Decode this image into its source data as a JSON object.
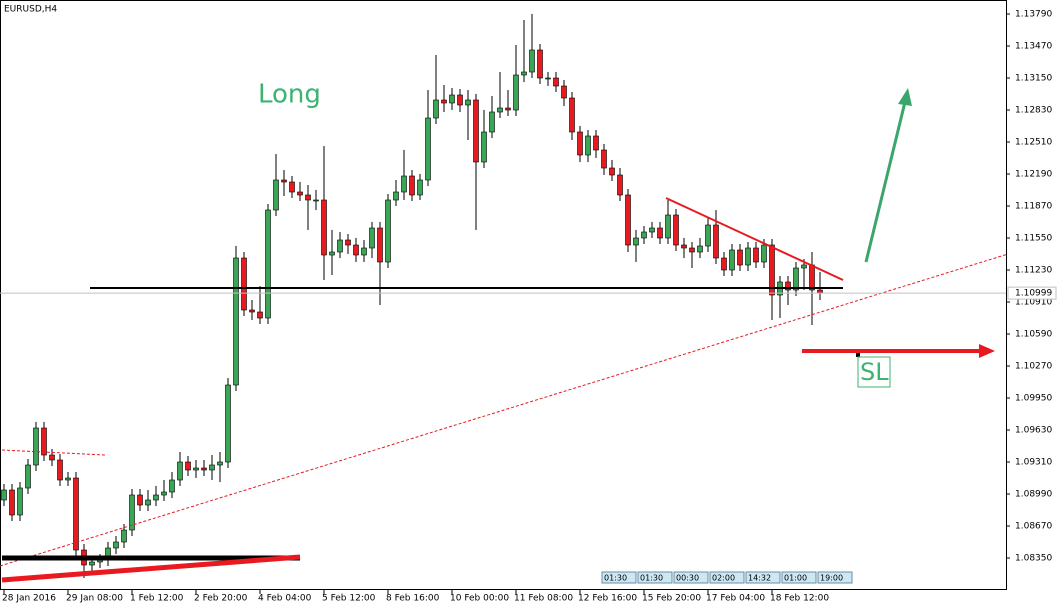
{
  "chart_data": {
    "type": "candlestick",
    "title": "EURUSD,H4",
    "categories": [
      "28 Jan 2016",
      null,
      null,
      null,
      null,
      null,
      null,
      null,
      "29 Jan 08:00",
      null,
      null,
      null,
      null,
      null,
      null,
      null,
      "1 Feb 12:00",
      null,
      null,
      null,
      null,
      null,
      null,
      null,
      "2 Feb 20:00",
      null,
      null,
      null,
      null,
      null,
      null,
      null,
      "4 Feb 04:00",
      null,
      null,
      null,
      null,
      null,
      null,
      null,
      "5 Feb 12:00",
      null,
      null,
      null,
      null,
      null,
      null,
      null,
      "8 Feb 16:00",
      null,
      null,
      null,
      null,
      null,
      null,
      null,
      "10 Feb 00:00",
      null,
      null,
      null,
      null,
      null,
      null,
      null,
      "11 Feb 08:00",
      null,
      null,
      null,
      null,
      null,
      null,
      null,
      "12 Feb 16:00",
      null,
      null,
      null,
      null,
      null,
      null,
      null,
      "15 Feb 20:00",
      null,
      null,
      null,
      null,
      null,
      null,
      null,
      "17 Feb 04:00",
      null,
      null,
      null,
      null,
      null,
      null,
      null,
      "18 Feb 12:00",
      null,
      null,
      null,
      null,
      null,
      null
    ],
    "open": [
      1.0893,
      1.0903,
      1.0878,
      1.0905,
      1.0928,
      1.0965,
      1.0938,
      1.0933,
      1.0913,
      1.0915,
      1.0843,
      1.0828,
      1.0831,
      1.0833,
      1.0845,
      1.0851,
      1.0863,
      1.0898,
      1.0888,
      1.0893,
      1.0898,
      1.0901,
      1.0913,
      1.0931,
      1.0923,
      1.0925,
      1.0923,
      1.0928,
      1.0931,
      1.1008,
      1.1135,
      1.1083,
      1.1081,
      1.1075,
      1.1183,
      1.1213,
      1.1211,
      1.1201,
      1.1198,
      1.1193,
      1.1193,
      1.1138,
      1.1141,
      1.1153,
      1.1148,
      1.1138,
      1.1145,
      1.1165,
      1.1131,
      1.1193,
      1.1201,
      1.1217,
      1.1198,
      1.1213,
      1.1275,
      1.1293,
      1.129,
      1.1298,
      1.1288,
      1.1293,
      1.1231,
      1.1261,
      1.1281,
      1.1285,
      1.1283,
      1.1318,
      1.1321,
      1.1343,
      1.1315,
      1.1315,
      1.1307,
      1.1295,
      1.1261,
      1.1238,
      1.1257,
      1.1243,
      1.1225,
      1.1218,
      1.1198,
      1.1148,
      1.1155,
      1.1161,
      1.1165,
      1.1155,
      1.1178,
      1.1148,
      1.1145,
      1.1141,
      1.1147,
      1.1168,
      1.1135,
      1.1123,
      1.1143,
      1.1128,
      1.1145,
      1.1131,
      1.1148,
      1.1098,
      1.1111,
      1.1103,
      1.1125,
      1.1128,
      1.1103
    ],
    "high": [
      1.0909,
      1.0909,
      1.0911,
      1.0934,
      1.0971,
      1.0971,
      1.0944,
      1.0939,
      1.0921,
      1.0921,
      1.0849,
      1.0837,
      1.0839,
      1.0851,
      1.0857,
      1.0869,
      1.0904,
      1.0904,
      1.0903,
      1.0907,
      1.0913,
      1.0921,
      1.0941,
      1.0937,
      1.0933,
      1.0933,
      1.0938,
      1.0941,
      1.1015,
      1.1147,
      1.1141,
      1.1093,
      1.1107,
      1.1189,
      1.1239,
      1.1223,
      1.1217,
      1.1211,
      1.1208,
      1.1203,
      1.1247,
      1.1163,
      1.1161,
      1.1159,
      1.1155,
      1.1153,
      1.1171,
      1.1171,
      1.1199,
      1.1213,
      1.1243,
      1.1223,
      1.1219,
      1.1303,
      1.1338,
      1.1308,
      1.1305,
      1.1304,
      1.1303,
      1.1299,
      1.1283,
      1.1297,
      1.1321,
      1.1303,
      1.1348,
      1.1373,
      1.1379,
      1.1349,
      1.1321,
      1.1321,
      1.1313,
      1.1301,
      1.1267,
      1.1263,
      1.1263,
      1.1249,
      1.1233,
      1.1225,
      1.1204,
      1.1163,
      1.1167,
      1.1171,
      1.1171,
      1.1193,
      1.1184,
      1.1155,
      1.1151,
      1.1155,
      1.1175,
      1.1183,
      1.1141,
      1.1149,
      1.1149,
      1.1151,
      1.1151,
      1.1154,
      1.1154,
      1.1117,
      1.1117,
      1.1131,
      1.1134,
      1.1141,
      1.1121
    ],
    "low": [
      1.0887,
      1.0872,
      1.0872,
      1.0899,
      1.0922,
      1.0932,
      1.0927,
      1.0907,
      1.0907,
      1.0837,
      1.0815,
      1.0822,
      1.0825,
      1.0827,
      1.0839,
      1.0845,
      1.0857,
      1.0882,
      1.0882,
      1.0887,
      1.0892,
      1.0895,
      1.0907,
      1.0917,
      1.0915,
      1.0917,
      1.0913,
      1.0911,
      1.0925,
      1.1002,
      1.1077,
      1.1073,
      1.1069,
      1.1069,
      1.1177,
      1.1197,
      1.1195,
      1.1192,
      1.1163,
      1.1183,
      1.1113,
      1.1118,
      1.1135,
      1.1139,
      1.1131,
      1.1131,
      1.1135,
      1.1088,
      1.1125,
      1.1187,
      1.1193,
      1.1192,
      1.1193,
      1.1207,
      1.1269,
      1.1281,
      1.1283,
      1.1281,
      1.1253,
      1.1163,
      1.1225,
      1.1255,
      1.1275,
      1.1277,
      1.1277,
      1.1311,
      1.1315,
      1.1309,
      1.1307,
      1.1301,
      1.1287,
      1.1253,
      1.1231,
      1.1231,
      1.1235,
      1.1218,
      1.1212,
      1.1192,
      1.1141,
      1.1131,
      1.1149,
      1.1155,
      1.1149,
      1.1149,
      1.1142,
      1.1135,
      1.1125,
      1.1135,
      1.1141,
      1.1129,
      1.1117,
      1.1117,
      1.1122,
      1.1122,
      1.1125,
      1.1125,
      1.1073,
      1.1075,
      1.1088,
      1.1097,
      1.1103,
      1.1068,
      1.1093
    ],
    "close": [
      1.0903,
      1.0878,
      1.0905,
      1.0928,
      1.0965,
      1.0938,
      1.0933,
      1.0913,
      1.0915,
      1.0843,
      1.0828,
      1.0831,
      1.0833,
      1.0845,
      1.0851,
      1.0863,
      1.0898,
      1.0888,
      1.0893,
      1.0898,
      1.0901,
      1.0913,
      1.0931,
      1.0923,
      1.0925,
      1.0923,
      1.0928,
      1.0931,
      1.1008,
      1.1135,
      1.1083,
      1.1081,
      1.1075,
      1.1183,
      1.1213,
      1.1211,
      1.1201,
      1.1198,
      1.1193,
      1.1193,
      1.1138,
      1.1141,
      1.1153,
      1.1148,
      1.1138,
      1.1145,
      1.1165,
      1.1131,
      1.1193,
      1.1201,
      1.1217,
      1.1198,
      1.1213,
      1.1275,
      1.1293,
      1.129,
      1.1298,
      1.1288,
      1.1293,
      1.1231,
      1.1261,
      1.1281,
      1.1285,
      1.1283,
      1.1318,
      1.1321,
      1.1343,
      1.1315,
      1.1315,
      1.1307,
      1.1295,
      1.1261,
      1.1238,
      1.1257,
      1.1243,
      1.1225,
      1.1218,
      1.1198,
      1.1148,
      1.1155,
      1.1161,
      1.1165,
      1.1155,
      1.1178,
      1.1148,
      1.1145,
      1.1141,
      1.1147,
      1.1168,
      1.1135,
      1.1123,
      1.1143,
      1.1128,
      1.1145,
      1.1131,
      1.1148,
      1.1098,
      1.1111,
      1.1103,
      1.1125,
      1.1128,
      1.1103,
      1.10999
    ],
    "up_color": "#3aa655",
    "down_color": "#e8191f",
    "ylim": [
      1.0803,
      1.1393
    ],
    "yticks": [
      {
        "value": 1.1379,
        "label": "1.13790"
      },
      {
        "value": 1.1347,
        "label": "1.13470"
      },
      {
        "value": 1.1315,
        "label": "1.13150"
      },
      {
        "value": 1.1283,
        "label": "1.12830"
      },
      {
        "value": 1.1251,
        "label": "1.12510"
      },
      {
        "value": 1.1219,
        "label": "1.12190"
      },
      {
        "value": 1.1187,
        "label": "1.11870"
      },
      {
        "value": 1.1155,
        "label": "1.11550"
      },
      {
        "value": 1.1123,
        "label": "1.11230"
      },
      {
        "value": 1.1091,
        "label": "1.10910"
      },
      {
        "value": 1.1059,
        "label": "1.10590"
      },
      {
        "value": 1.1027,
        "label": "1.10270"
      },
      {
        "value": 1.0995,
        "label": "1.09950"
      },
      {
        "value": 1.0963,
        "label": "1.09630"
      },
      {
        "value": 1.0931,
        "label": "1.09310"
      },
      {
        "value": 1.0899,
        "label": "1.08990"
      },
      {
        "value": 1.0867,
        "label": "1.08670"
      },
      {
        "value": 1.0835,
        "label": "1.08350"
      }
    ],
    "current_price": 1.10999,
    "annotations": {
      "long": "Long",
      "sl": "SL"
    },
    "time_markers": [
      "01:30",
      "01:30",
      "00:30",
      "02:00",
      "14:32",
      "01:00",
      "19:00"
    ]
  }
}
